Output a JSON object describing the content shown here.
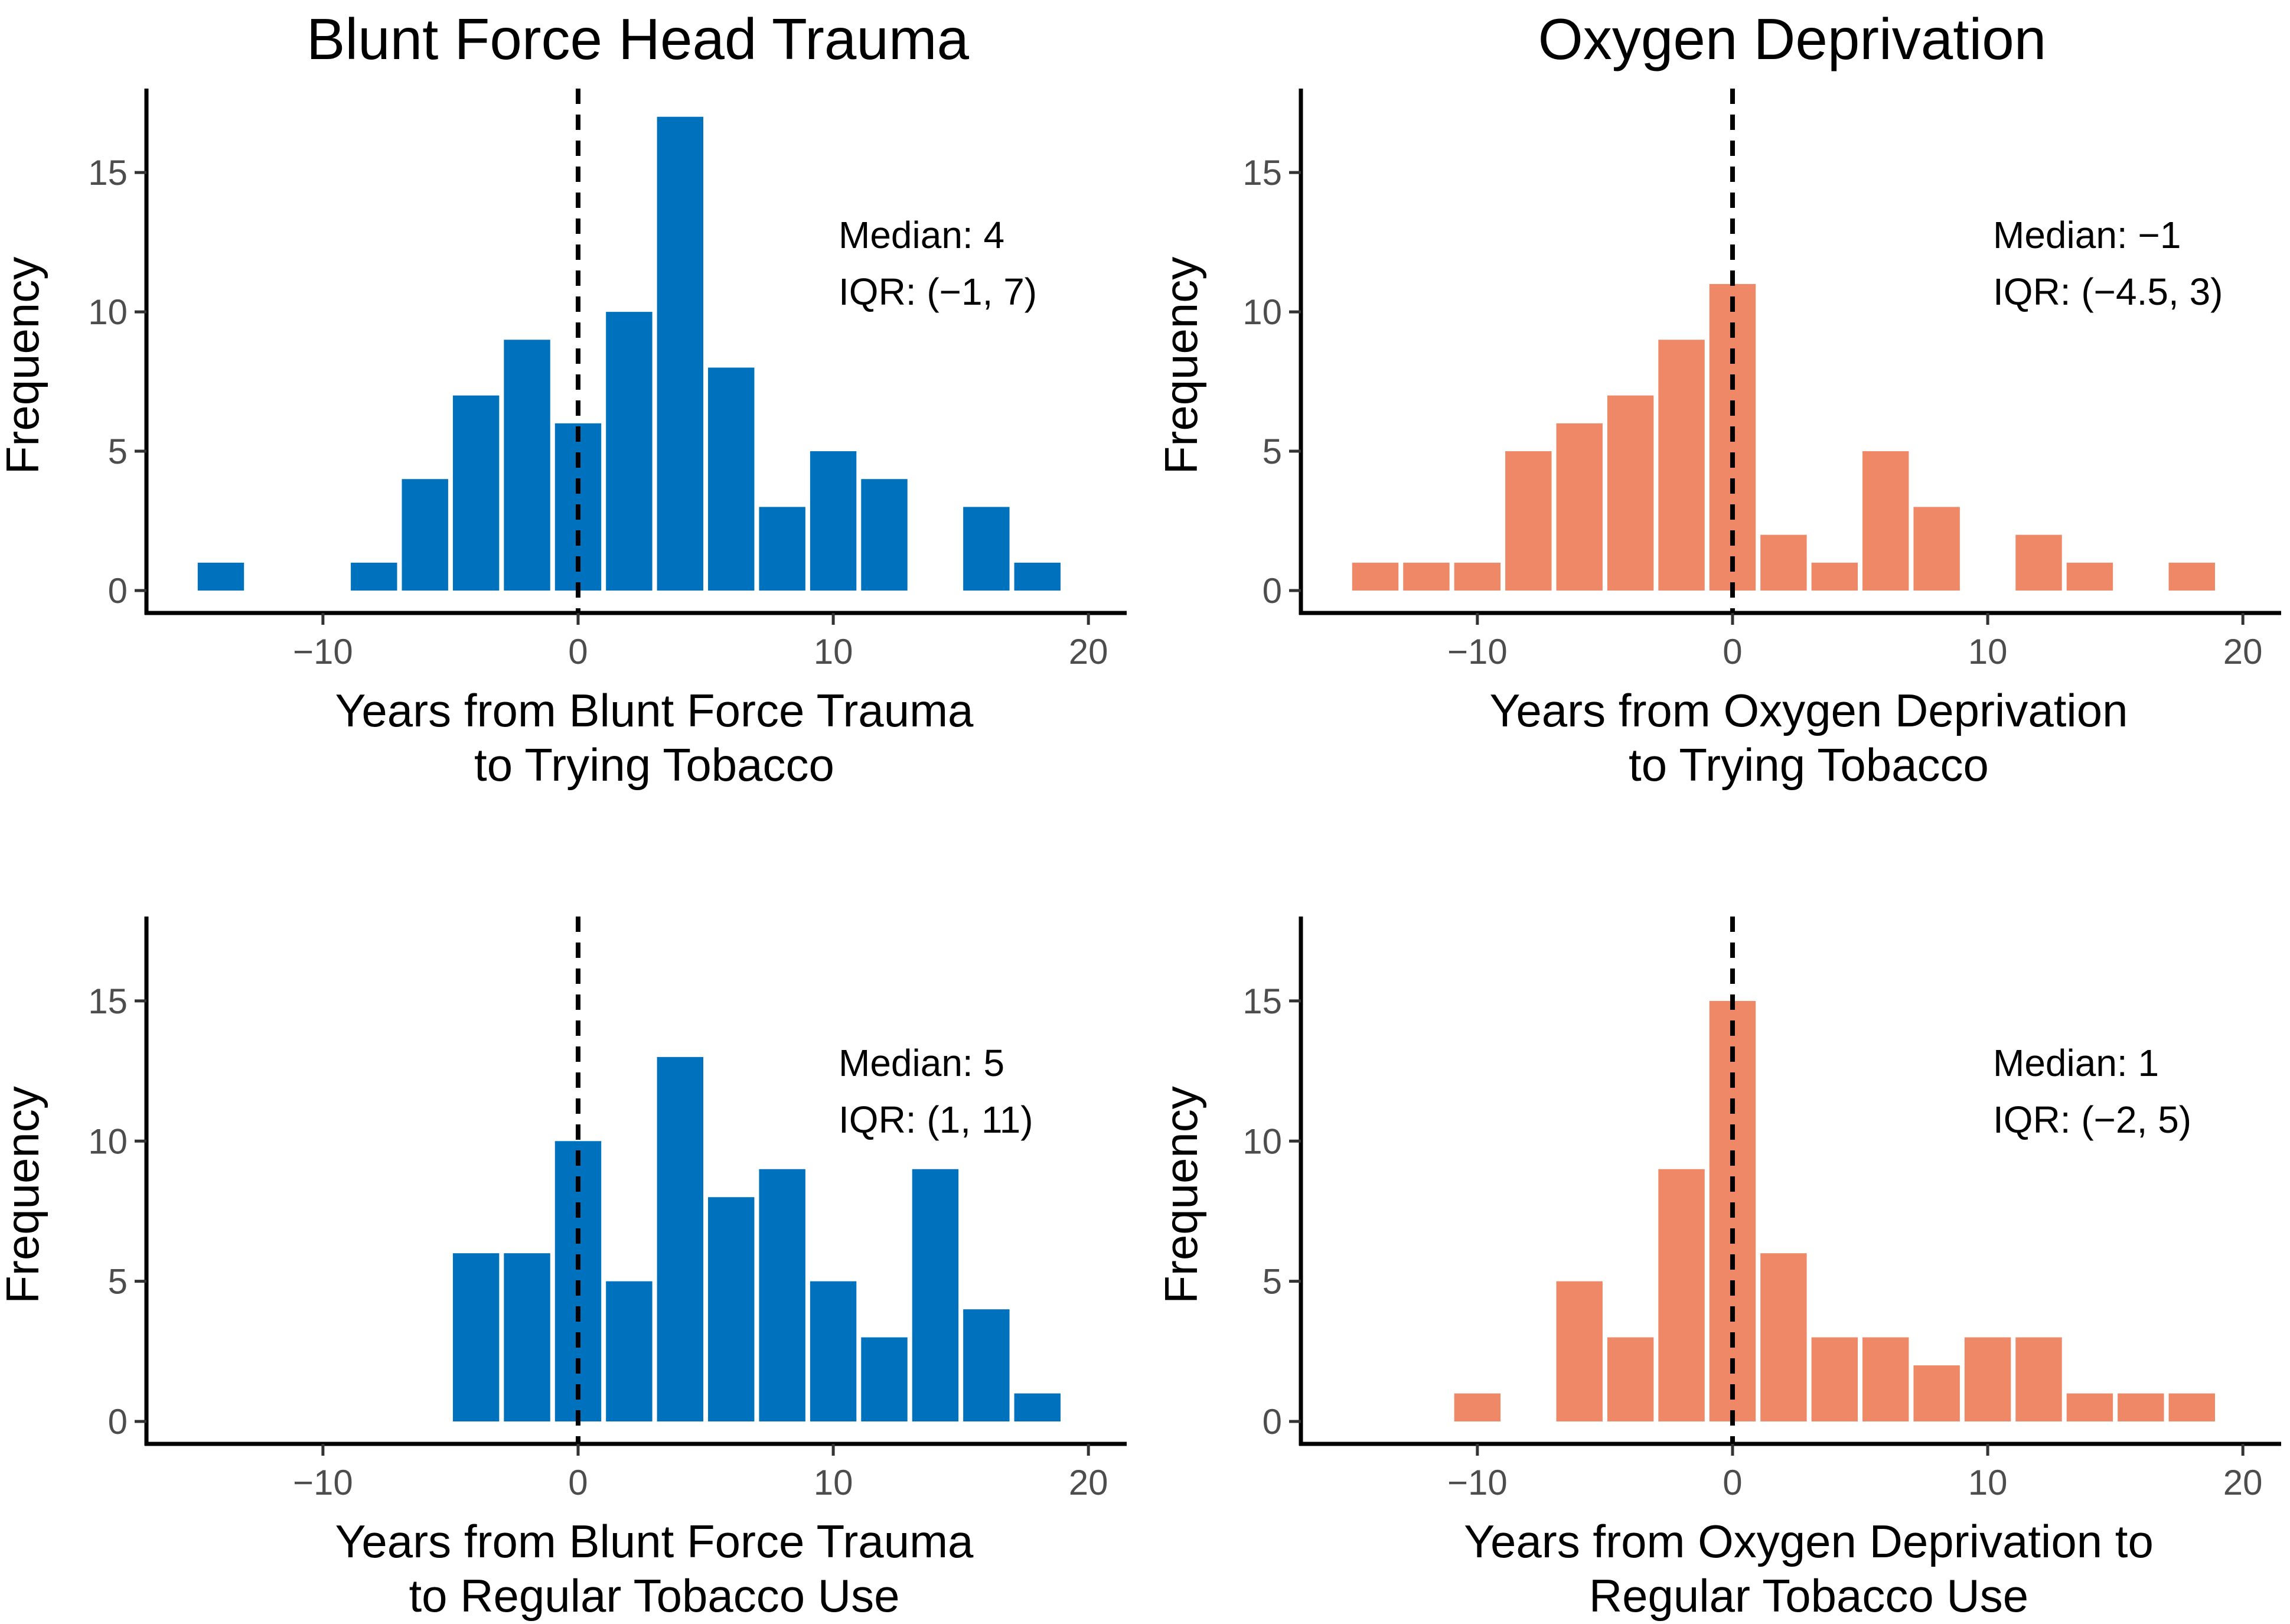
{
  "column_titles": [
    "Blunt Force Head Trauma",
    "Oxygen Deprivation"
  ],
  "chart_data": [
    {
      "type": "bar",
      "title": "Blunt Force Head Trauma",
      "xlabel": [
        "Years from Blunt Force Trauma",
        "to Trying Tobacco"
      ],
      "ylabel": "Frequency",
      "xlim": [
        -16.5,
        21.5
      ],
      "ylim": [
        0,
        17.8
      ],
      "xticks": [
        -10,
        0,
        10,
        20
      ],
      "xtick_labels": [
        "−10",
        "0",
        "10",
        "20"
      ],
      "yticks": [
        0,
        5,
        10,
        15
      ],
      "color": "#0072bd",
      "bin_width": 2,
      "bins": [
        {
          "center": -14,
          "count": 1
        },
        {
          "center": -8,
          "count": 1
        },
        {
          "center": -6,
          "count": 4
        },
        {
          "center": -4,
          "count": 7
        },
        {
          "center": -2,
          "count": 9
        },
        {
          "center": 0,
          "count": 6
        },
        {
          "center": 2,
          "count": 10
        },
        {
          "center": 4,
          "count": 17
        },
        {
          "center": 6,
          "count": 8
        },
        {
          "center": 8,
          "count": 3
        },
        {
          "center": 10,
          "count": 5
        },
        {
          "center": 12,
          "count": 4
        },
        {
          "center": 16,
          "count": 3
        },
        {
          "center": 18,
          "count": 1
        }
      ],
      "reference_line_x": 0,
      "annotation": [
        "Median: 4",
        "IQR: (−1, 7)"
      ]
    },
    {
      "type": "bar",
      "title": "Oxygen Deprivation",
      "xlabel": [
        "Years from Oxygen Deprivation",
        "to Trying Tobacco"
      ],
      "ylabel": "Frequency",
      "xlim": [
        -16.5,
        21.5
      ],
      "ylim": [
        0,
        17.8
      ],
      "xticks": [
        -10,
        0,
        10,
        20
      ],
      "xtick_labels": [
        "−10",
        "0",
        "10",
        "20"
      ],
      "yticks": [
        0,
        5,
        10,
        15
      ],
      "color": "#ee8866",
      "bin_width": 2,
      "bins": [
        {
          "center": -14,
          "count": 1
        },
        {
          "center": -12,
          "count": 1
        },
        {
          "center": -10,
          "count": 1
        },
        {
          "center": -8,
          "count": 5
        },
        {
          "center": -6,
          "count": 6
        },
        {
          "center": -4,
          "count": 7
        },
        {
          "center": -2,
          "count": 9
        },
        {
          "center": 0,
          "count": 11
        },
        {
          "center": 2,
          "count": 2
        },
        {
          "center": 4,
          "count": 1
        },
        {
          "center": 6,
          "count": 5
        },
        {
          "center": 8,
          "count": 3
        },
        {
          "center": 12,
          "count": 2
        },
        {
          "center": 14,
          "count": 1
        },
        {
          "center": 18,
          "count": 1
        }
      ],
      "reference_line_x": 0,
      "annotation": [
        "Median: −1",
        "IQR: (−4.5, 3)"
      ]
    },
    {
      "type": "bar",
      "title": "",
      "xlabel": [
        "Years from Blunt Force Trauma",
        "to Regular Tobacco Use"
      ],
      "ylabel": "Frequency",
      "xlim": [
        -16.5,
        21.5
      ],
      "ylim": [
        0,
        17.8
      ],
      "xticks": [
        -10,
        0,
        10,
        20
      ],
      "xtick_labels": [
        "−10",
        "0",
        "10",
        "20"
      ],
      "yticks": [
        0,
        5,
        10,
        15
      ],
      "color": "#0072bd",
      "bin_width": 2,
      "bins": [
        {
          "center": -4,
          "count": 6
        },
        {
          "center": -2,
          "count": 6
        },
        {
          "center": 0,
          "count": 10
        },
        {
          "center": 2,
          "count": 5
        },
        {
          "center": 4,
          "count": 13
        },
        {
          "center": 6,
          "count": 8
        },
        {
          "center": 8,
          "count": 9
        },
        {
          "center": 10,
          "count": 5
        },
        {
          "center": 12,
          "count": 3
        },
        {
          "center": 14,
          "count": 9
        },
        {
          "center": 16,
          "count": 4
        },
        {
          "center": 18,
          "count": 1
        }
      ],
      "reference_line_x": 0,
      "annotation": [
        "Median: 5",
        "IQR: (1, 11)"
      ]
    },
    {
      "type": "bar",
      "title": "",
      "xlabel": [
        "Years from Oxygen Deprivation to",
        "Regular Tobacco Use"
      ],
      "ylabel": "Frequency",
      "xlim": [
        -16.5,
        21.5
      ],
      "ylim": [
        0,
        17.8
      ],
      "xticks": [
        -10,
        0,
        10,
        20
      ],
      "xtick_labels": [
        "−10",
        "0",
        "10",
        "20"
      ],
      "yticks": [
        0,
        5,
        10,
        15
      ],
      "color": "#ee8866",
      "bin_width": 2,
      "bins": [
        {
          "center": -10,
          "count": 1
        },
        {
          "center": -6,
          "count": 5
        },
        {
          "center": -4,
          "count": 3
        },
        {
          "center": -2,
          "count": 9
        },
        {
          "center": 0,
          "count": 15
        },
        {
          "center": 2,
          "count": 6
        },
        {
          "center": 4,
          "count": 3
        },
        {
          "center": 6,
          "count": 3
        },
        {
          "center": 8,
          "count": 2
        },
        {
          "center": 10,
          "count": 3
        },
        {
          "center": 12,
          "count": 3
        },
        {
          "center": 14,
          "count": 1
        },
        {
          "center": 16,
          "count": 1
        },
        {
          "center": 18,
          "count": 1
        }
      ],
      "reference_line_x": 0,
      "annotation": [
        "Median: 1",
        "IQR: (−2, 5)"
      ]
    }
  ]
}
